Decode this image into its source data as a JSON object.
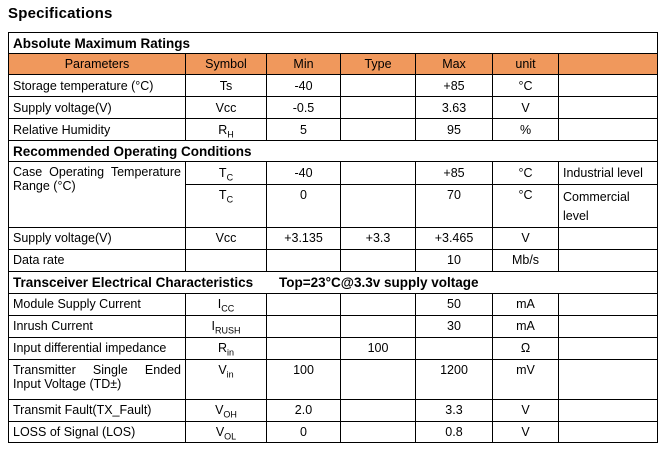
{
  "page": {
    "title": "Specifications"
  },
  "colors": {
    "header_bg": "#F0985C",
    "border": "#000000",
    "text": "#000000"
  },
  "table": {
    "header": {
      "parameters": "Parameters",
      "symbol": "Symbol",
      "min": "Min",
      "type": "Type",
      "max": "Max",
      "unit": "unit",
      "note": ""
    },
    "section1": {
      "title": "Absolute Maximum Ratings",
      "rows": [
        {
          "param": "Storage temperature (°C)",
          "sym": "Ts",
          "sub": "",
          "min": "-40",
          "type": "",
          "max": "+85",
          "unit": "°C",
          "note": ""
        },
        {
          "param": "Supply voltage(V)",
          "sym": "Vcc",
          "sub": "",
          "min": "-0.5",
          "type": "",
          "max": "3.63",
          "unit": "V",
          "note": ""
        },
        {
          "param": "Relative Humidity",
          "sym": "R",
          "sub": "H",
          "min": "5",
          "type": "",
          "max": "95",
          "unit": "%",
          "note": ""
        }
      ]
    },
    "section2": {
      "title": "Recommended Operating Conditions",
      "case_param": {
        "line1": "Case Operating Temperature",
        "line2": "Range (°C)"
      },
      "case_rows": [
        {
          "sym": "T",
          "sub": "C",
          "min": "-40",
          "type": "",
          "max": "+85",
          "unit": "°C",
          "note": "Industrial level"
        },
        {
          "sym": "T",
          "sub": "C",
          "min": "0",
          "type": "",
          "max": "70",
          "unit": "°C",
          "note": "Commercial level"
        }
      ],
      "rows": [
        {
          "param": "Supply voltage(V)",
          "sym": "Vcc",
          "sub": "",
          "min": "+3.135",
          "type": "+3.3",
          "max": "+3.465",
          "unit": "V",
          "note": ""
        },
        {
          "param": "Data rate",
          "sym": "",
          "sub": "",
          "min": "",
          "type": "",
          "max": "10",
          "unit": "Mb/s",
          "note": ""
        }
      ]
    },
    "section3": {
      "title": "Transceiver Electrical Characteristics",
      "subtitle": "Top=23°C@3.3v supply voltage",
      "rows": [
        {
          "param": "Module Supply Current",
          "sym": "I",
          "sub": "CC",
          "min": "",
          "type": "",
          "max": "50",
          "unit": "mA",
          "note": ""
        },
        {
          "param": "Inrush Current",
          "sym": "I",
          "sub": "RUSH",
          "min": "",
          "type": "",
          "max": "30",
          "unit": "mA",
          "note": ""
        },
        {
          "param": "Input differential impedance",
          "sym": "R",
          "sub": "in",
          "min": "",
          "type": "100",
          "max": "",
          "unit": "Ω",
          "note": ""
        }
      ],
      "transmitter_row": {
        "param_line1": "Transmitter Single Ended",
        "param_line2": "Input Voltage (TD±)",
        "sym": "V",
        "sub": "in",
        "min": "100",
        "type": "",
        "max": "1200",
        "unit": "mV",
        "note": ""
      },
      "rows2": [
        {
          "param": "Transmit Fault(TX_Fault)",
          "sym": "V",
          "sub": "OH",
          "min": "2.0",
          "type": "",
          "max": "3.3",
          "unit": "V",
          "note": ""
        },
        {
          "param": "LOSS of Signal (LOS)",
          "sym": "V",
          "sub": "OL",
          "min": "0",
          "type": "",
          "max": "0.8",
          "unit": "V",
          "note": ""
        }
      ]
    }
  }
}
